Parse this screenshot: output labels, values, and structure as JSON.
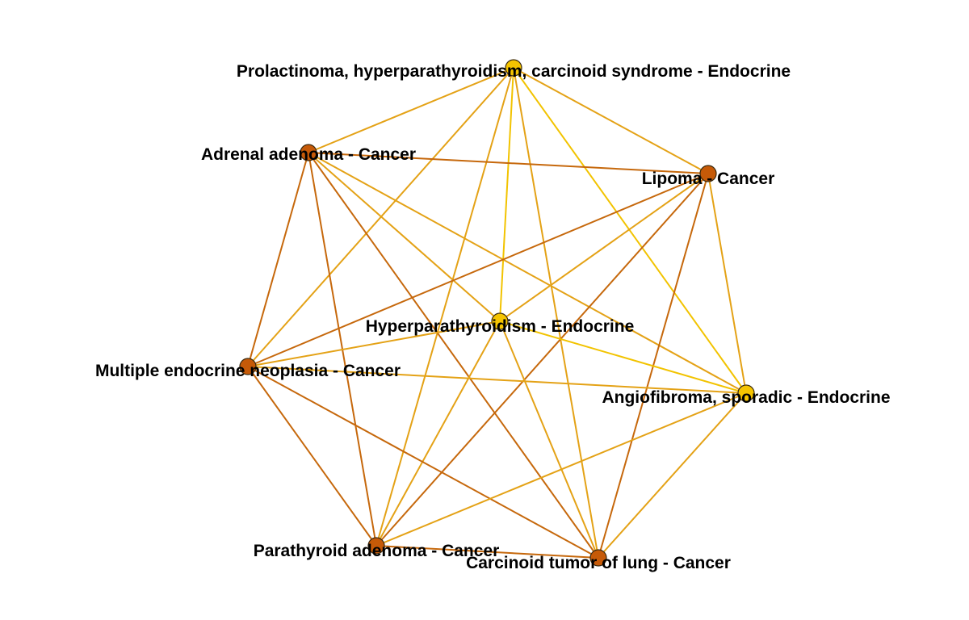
{
  "colors": {
    "endocrine": "#f5c400",
    "cancer": "#c65a08",
    "node_stroke": "#3a2a10",
    "edge_yellow": "#f2c300",
    "edge_orange": "#e4a216",
    "edge_brown": "#c6680c"
  },
  "nodes": [
    {
      "id": "prolactinoma",
      "label": "Prolactinoma, hyperparathyroidism, carcinoid syndrome - Endocrine",
      "group": "endocrine"
    },
    {
      "id": "adrenal",
      "label": "Adrenal adenoma - Cancer",
      "group": "cancer"
    },
    {
      "id": "lipoma",
      "label": "Lipoma - Cancer",
      "group": "cancer"
    },
    {
      "id": "hyperpara",
      "label": "Hyperparathyroidism - Endocrine",
      "group": "endocrine"
    },
    {
      "id": "men",
      "label": "Multiple endocrine neoplasia - Cancer",
      "group": "cancer"
    },
    {
      "id": "angio",
      "label": "Angiofibroma, sporadic - Endocrine",
      "group": "endocrine"
    },
    {
      "id": "parathyroid",
      "label": "Parathyroid adenoma - Cancer",
      "group": "cancer"
    },
    {
      "id": "carcinoid",
      "label": "Carcinoid tumor of lung - Cancer",
      "group": "cancer"
    }
  ],
  "edges": [
    {
      "source": "prolactinoma",
      "target": "adrenal",
      "tone": "orange"
    },
    {
      "source": "prolactinoma",
      "target": "lipoma",
      "tone": "orange"
    },
    {
      "source": "prolactinoma",
      "target": "hyperpara",
      "tone": "yellow"
    },
    {
      "source": "prolactinoma",
      "target": "men",
      "tone": "orange"
    },
    {
      "source": "prolactinoma",
      "target": "angio",
      "tone": "yellow"
    },
    {
      "source": "prolactinoma",
      "target": "parathyroid",
      "tone": "orange"
    },
    {
      "source": "prolactinoma",
      "target": "carcinoid",
      "tone": "orange"
    },
    {
      "source": "adrenal",
      "target": "lipoma",
      "tone": "brown"
    },
    {
      "source": "adrenal",
      "target": "hyperpara",
      "tone": "orange"
    },
    {
      "source": "adrenal",
      "target": "men",
      "tone": "brown"
    },
    {
      "source": "adrenal",
      "target": "angio",
      "tone": "orange"
    },
    {
      "source": "adrenal",
      "target": "parathyroid",
      "tone": "brown"
    },
    {
      "source": "adrenal",
      "target": "carcinoid",
      "tone": "brown"
    },
    {
      "source": "lipoma",
      "target": "hyperpara",
      "tone": "orange"
    },
    {
      "source": "lipoma",
      "target": "men",
      "tone": "brown"
    },
    {
      "source": "lipoma",
      "target": "angio",
      "tone": "orange"
    },
    {
      "source": "lipoma",
      "target": "parathyroid",
      "tone": "brown"
    },
    {
      "source": "lipoma",
      "target": "carcinoid",
      "tone": "brown"
    },
    {
      "source": "hyperpara",
      "target": "men",
      "tone": "orange"
    },
    {
      "source": "hyperpara",
      "target": "angio",
      "tone": "yellow"
    },
    {
      "source": "hyperpara",
      "target": "parathyroid",
      "tone": "orange"
    },
    {
      "source": "hyperpara",
      "target": "carcinoid",
      "tone": "orange"
    },
    {
      "source": "men",
      "target": "angio",
      "tone": "orange"
    },
    {
      "source": "men",
      "target": "parathyroid",
      "tone": "brown"
    },
    {
      "source": "men",
      "target": "carcinoid",
      "tone": "brown"
    },
    {
      "source": "angio",
      "target": "parathyroid",
      "tone": "orange"
    },
    {
      "source": "angio",
      "target": "carcinoid",
      "tone": "orange"
    },
    {
      "source": "parathyroid",
      "target": "carcinoid",
      "tone": "brown"
    }
  ]
}
